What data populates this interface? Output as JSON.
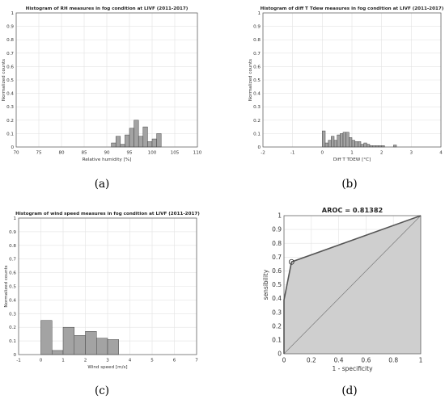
{
  "chart_data": [
    {
      "type": "bar",
      "panel": "a",
      "caption": "(a)",
      "title": "Histogram of RH measures in fog condition at LIVF (2011-2017)",
      "xlabel": "Relative humidity [%]",
      "ylabel": "Normalized counts",
      "xlim": [
        70,
        110
      ],
      "ylim": [
        0,
        1
      ],
      "xticks": [
        "70",
        "75",
        "80",
        "85",
        "90",
        "95",
        "100",
        "105",
        "110"
      ],
      "yticks": [
        "0",
        "0.1",
        "0.2",
        "0.3",
        "0.4",
        "0.5",
        "0.6",
        "0.7",
        "0.8",
        "0.9",
        "1"
      ],
      "bin_width": 1,
      "bins": [
        {
          "x": 91,
          "value": 0.03
        },
        {
          "x": 92,
          "value": 0.08
        },
        {
          "x": 93,
          "value": 0.02
        },
        {
          "x": 94,
          "value": 0.09
        },
        {
          "x": 95,
          "value": 0.14
        },
        {
          "x": 96,
          "value": 0.2
        },
        {
          "x": 97,
          "value": 0.08
        },
        {
          "x": 98,
          "value": 0.15
        },
        {
          "x": 99,
          "value": 0.04
        },
        {
          "x": 100,
          "value": 0.06
        },
        {
          "x": 101,
          "value": 0.1
        }
      ]
    },
    {
      "type": "bar",
      "panel": "b",
      "caption": "(b)",
      "title": "Histogram of diff T Tdew measures in fog condition at LIVF (2011-2017)",
      "xlabel": "Diff T TDEW [°C]",
      "ylabel": "Normalized counts",
      "xlim": [
        -2,
        4
      ],
      "ylim": [
        0,
        1
      ],
      "xticks": [
        "-2",
        "-1",
        "0",
        "1",
        "2",
        "3",
        "4"
      ],
      "yticks": [
        "0",
        "0.1",
        "0.2",
        "0.3",
        "0.4",
        "0.5",
        "0.6",
        "0.7",
        "0.8",
        "0.9",
        "1"
      ],
      "bin_width": 0.1,
      "bins": [
        {
          "x": 0.0,
          "value": 0.12
        },
        {
          "x": 0.1,
          "value": 0.03
        },
        {
          "x": 0.2,
          "value": 0.05
        },
        {
          "x": 0.3,
          "value": 0.08
        },
        {
          "x": 0.4,
          "value": 0.05
        },
        {
          "x": 0.5,
          "value": 0.09
        },
        {
          "x": 0.6,
          "value": 0.1
        },
        {
          "x": 0.7,
          "value": 0.11
        },
        {
          "x": 0.8,
          "value": 0.11
        },
        {
          "x": 0.9,
          "value": 0.07
        },
        {
          "x": 1.0,
          "value": 0.05
        },
        {
          "x": 1.1,
          "value": 0.04
        },
        {
          "x": 1.2,
          "value": 0.04
        },
        {
          "x": 1.3,
          "value": 0.02
        },
        {
          "x": 1.4,
          "value": 0.03
        },
        {
          "x": 1.5,
          "value": 0.02
        },
        {
          "x": 1.6,
          "value": 0.01
        },
        {
          "x": 1.7,
          "value": 0.01
        },
        {
          "x": 1.8,
          "value": 0.01
        },
        {
          "x": 1.9,
          "value": 0.01
        },
        {
          "x": 2.0,
          "value": 0.01
        },
        {
          "x": 2.4,
          "value": 0.015
        }
      ]
    },
    {
      "type": "bar",
      "panel": "c",
      "caption": "(c)",
      "title": "Histogram of wind speed measures in fog condition at LIVF (2011-2017)",
      "xlabel": "Wind speed [m/s]",
      "ylabel": "Normalized counts",
      "xlim": [
        -1,
        7
      ],
      "ylim": [
        0,
        1
      ],
      "xticks": [
        "-1",
        "0",
        "1",
        "2",
        "3",
        "4",
        "5",
        "6",
        "7"
      ],
      "yticks": [
        "0",
        "0.1",
        "0.2",
        "0.3",
        "0.4",
        "0.5",
        "0.6",
        "0.7",
        "0.8",
        "0.9",
        "1"
      ],
      "bin_width": 0.5,
      "bins": [
        {
          "x": 0.0,
          "value": 0.25
        },
        {
          "x": 0.5,
          "value": 0.03
        },
        {
          "x": 1.0,
          "value": 0.2
        },
        {
          "x": 1.5,
          "value": 0.14
        },
        {
          "x": 2.0,
          "value": 0.17
        },
        {
          "x": 2.5,
          "value": 0.12
        },
        {
          "x": 3.0,
          "value": 0.11
        }
      ]
    },
    {
      "type": "area",
      "panel": "d",
      "caption": "(d)",
      "title": "AROC = 0.81382",
      "xlabel": "1 - specificity",
      "ylabel": "sensibility",
      "xlim": [
        0,
        1
      ],
      "ylim": [
        0,
        1
      ],
      "xticks": [
        "0",
        "0.2",
        "0.4",
        "0.6",
        "0.8",
        "1"
      ],
      "yticks": [
        "0",
        "0.1",
        "0.2",
        "0.3",
        "0.4",
        "0.5",
        "0.6",
        "0.7",
        "0.8",
        "0.9",
        "1"
      ],
      "roc_curve": [
        {
          "x": 0.0,
          "y": 0.0
        },
        {
          "x": 0.0,
          "y": 0.39
        },
        {
          "x": 0.055,
          "y": 0.665
        },
        {
          "x": 1.0,
          "y": 1.0
        }
      ],
      "operating_point": {
        "x": 0.055,
        "y": 0.665
      },
      "diagonal": [
        {
          "x": 0,
          "y": 0
        },
        {
          "x": 1,
          "y": 1
        }
      ]
    }
  ]
}
